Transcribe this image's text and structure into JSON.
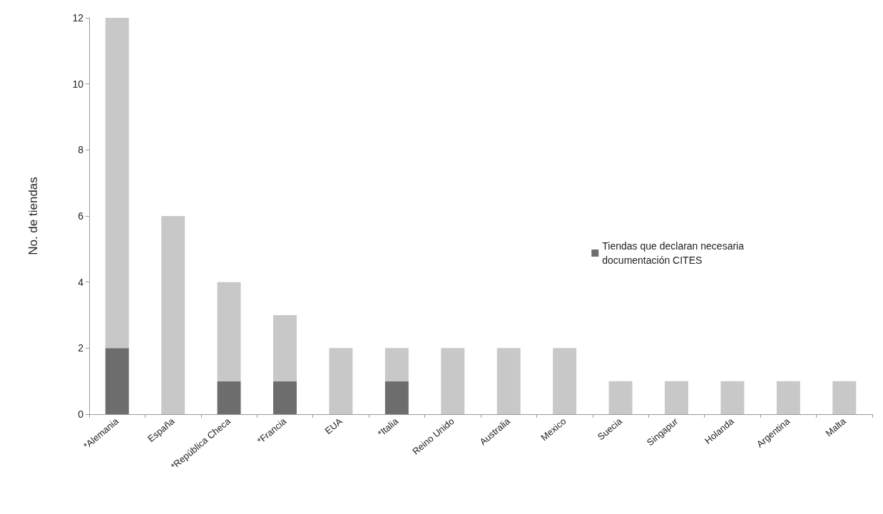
{
  "chart_data": {
    "type": "bar",
    "ylabel": "No. de tiendas",
    "stacked": true,
    "grid": false,
    "legend": "right",
    "categories": [
      "*Alemania",
      "España",
      "*República Checa",
      "*Francia",
      "EUA",
      "*Italia",
      "Reino Unido",
      "Australia",
      "Mexico",
      "Suecia",
      "Singapur",
      "Holanda",
      "Argentina",
      "Malta"
    ],
    "series": [
      {
        "name": "Tiendas que declaran necesaria\ndocumentación CITES",
        "color": "#6d6d6d",
        "values": [
          2,
          0,
          1,
          1,
          0,
          1,
          0,
          0,
          0,
          0,
          0,
          0,
          0,
          0
        ]
      },
      {
        "color": "#c8c8c8",
        "values": [
          10,
          6,
          3,
          2,
          2,
          1,
          2,
          2,
          2,
          1,
          1,
          1,
          1,
          1
        ]
      }
    ],
    "ylim": [
      0,
      12
    ],
    "yticks": [
      0,
      2,
      4,
      6,
      8,
      10,
      12
    ]
  }
}
